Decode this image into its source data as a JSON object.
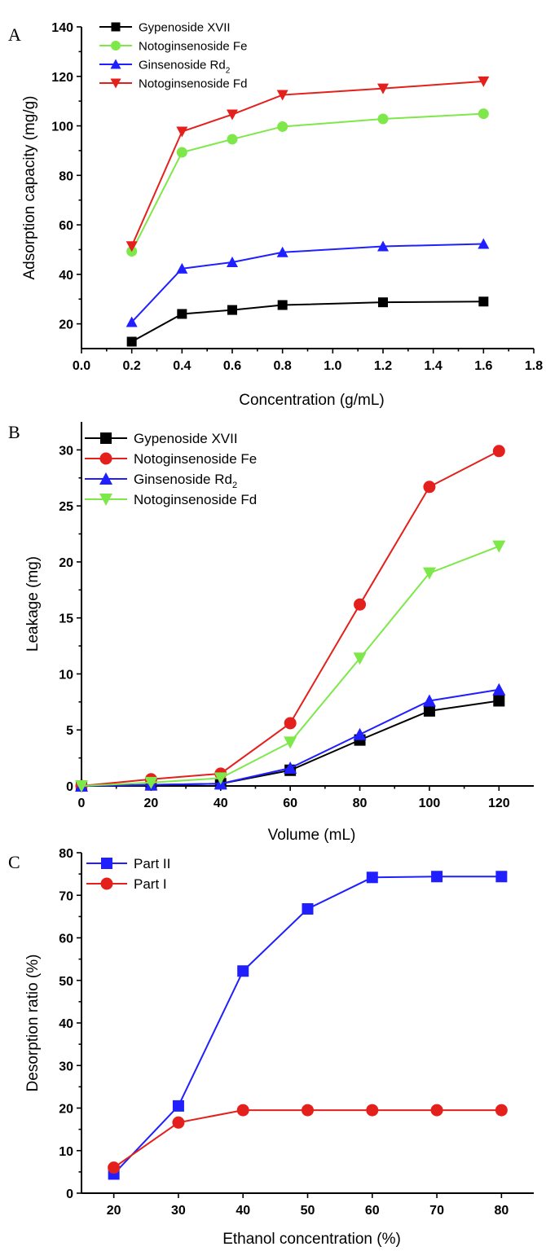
{
  "chart_data": [
    {
      "panel": "A",
      "type": "line",
      "xlabel": "Concentration (g/mL)",
      "ylabel": "Adsorption capacity (mg/g)",
      "xlim": [
        0.0,
        1.8
      ],
      "ylim": [
        10,
        140
      ],
      "xticks": [
        0.0,
        0.2,
        0.4,
        0.6,
        0.8,
        1.0,
        1.2,
        1.4,
        1.6,
        1.8
      ],
      "xtick_labels": [
        "0.0",
        "0.2",
        "0.4",
        "0.6",
        "0.8",
        "1.0",
        "1.2",
        "1.4",
        "1.6",
        "1.8"
      ],
      "yticks": [
        20,
        40,
        60,
        80,
        100,
        120,
        140
      ],
      "ytick_labels": [
        "20",
        "40",
        "60",
        "80",
        "100",
        "120",
        "140"
      ],
      "legend_position": "top-left",
      "grid": false,
      "x": [
        0.2,
        0.4,
        0.6,
        0.8,
        1.2,
        1.6
      ],
      "series": [
        {
          "name": "Gypenoside XVII",
          "color": "#000000",
          "marker": "square",
          "values": [
            12.8,
            24.0,
            25.6,
            27.6,
            28.7,
            29.0
          ]
        },
        {
          "name": "Notoginsenoside Fe",
          "color": "#7ee84a",
          "marker": "circle",
          "values": [
            49.3,
            89.3,
            94.6,
            99.7,
            102.8,
            104.9
          ]
        },
        {
          "name": "Ginsenoside Rd",
          "name_sub": "2",
          "color": "#1f1fff",
          "marker": "triangle-up",
          "values": [
            20.7,
            42.3,
            44.9,
            48.9,
            51.3,
            52.3
          ]
        },
        {
          "name": "Notoginsenoside Fd",
          "color": "#e3201b",
          "marker": "triangle-down",
          "values": [
            51.4,
            97.7,
            104.6,
            112.5,
            115.1,
            118.0
          ]
        }
      ]
    },
    {
      "panel": "B",
      "type": "line",
      "xlabel": "Volume (mL)",
      "ylabel": "Leakage (mg)",
      "xlim": [
        0,
        130
      ],
      "ylim": [
        0,
        32.5
      ],
      "xticks": [
        0,
        20,
        40,
        60,
        80,
        100,
        120
      ],
      "xtick_labels": [
        "0",
        "20",
        "40",
        "60",
        "80",
        "100",
        "120"
      ],
      "yticks": [
        0,
        5,
        10,
        15,
        20,
        25,
        30
      ],
      "ytick_labels": [
        "0",
        "5",
        "10",
        "15",
        "20",
        "25",
        "30"
      ],
      "legend_position": "top-left",
      "grid": false,
      "x": [
        0,
        20,
        40,
        60,
        80,
        100,
        120
      ],
      "series": [
        {
          "name": "Gypenoside XVII",
          "color": "#000000",
          "marker": "square",
          "values": [
            0.0,
            0.1,
            0.2,
            1.4,
            4.1,
            6.7,
            7.6
          ]
        },
        {
          "name": "Notoginsenoside Fe",
          "color": "#e3201b",
          "marker": "circle",
          "values": [
            0.0,
            0.6,
            1.1,
            5.6,
            16.2,
            26.7,
            29.9
          ]
        },
        {
          "name": "Ginsenoside Rd",
          "name_sub": "2",
          "color": "#1f1fff",
          "marker": "triangle-up",
          "values": [
            0.0,
            0.1,
            0.2,
            1.6,
            4.6,
            7.6,
            8.6
          ]
        },
        {
          "name": "Notoginsenoside Fd",
          "color": "#7ee84a",
          "marker": "triangle-down",
          "values": [
            0.0,
            0.3,
            0.7,
            3.9,
            11.4,
            19.0,
            21.4
          ]
        }
      ]
    },
    {
      "panel": "C",
      "type": "line",
      "xlabel": "Ethanol concentration (%)",
      "ylabel": "Desorption ratio (%)",
      "xlim": [
        15,
        85
      ],
      "ylim": [
        0,
        80
      ],
      "xticks": [
        20,
        30,
        40,
        50,
        60,
        70,
        80
      ],
      "xtick_labels": [
        "20",
        "30",
        "40",
        "50",
        "60",
        "70",
        "80"
      ],
      "yticks": [
        0,
        10,
        20,
        30,
        40,
        50,
        60,
        70,
        80
      ],
      "ytick_labels": [
        "0",
        "10",
        "20",
        "30",
        "40",
        "50",
        "60",
        "70",
        "80"
      ],
      "legend_position": "top-left",
      "grid": false,
      "x": [
        20,
        30,
        40,
        50,
        60,
        70,
        80
      ],
      "series": [
        {
          "name": "Part II",
          "color": "#1f1fff",
          "marker": "square",
          "values": [
            4.5,
            20.5,
            52.2,
            66.8,
            74.2,
            74.4,
            74.4
          ]
        },
        {
          "name": "Part I",
          "color": "#e3201b",
          "marker": "circle",
          "values": [
            6.0,
            16.6,
            19.5,
            19.5,
            19.5,
            19.5,
            19.5
          ]
        }
      ]
    }
  ]
}
